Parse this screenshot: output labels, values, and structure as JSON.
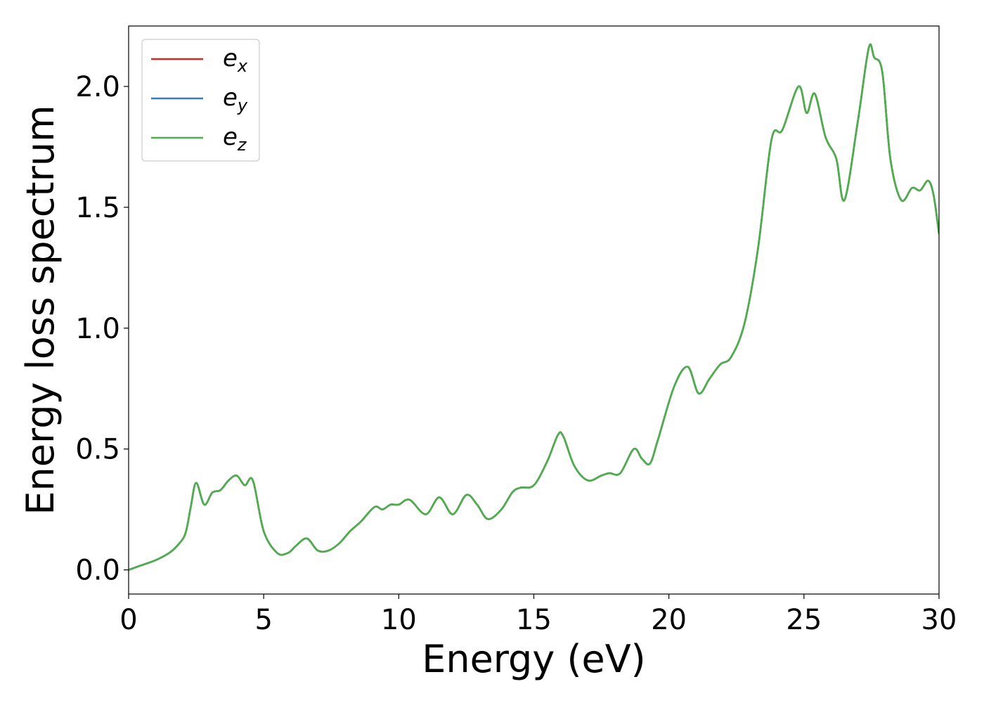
{
  "chart_data": {
    "type": "line",
    "xlabel": "Energy (eV)",
    "ylabel": "Energy loss spectrum",
    "xlim": [
      0,
      30
    ],
    "ylim": [
      -0.1,
      2.25
    ],
    "xticks": [
      0,
      5,
      10,
      15,
      20,
      25,
      30
    ],
    "xtick_labels": [
      "0",
      "5",
      "10",
      "15",
      "20",
      "25",
      "30"
    ],
    "yticks": [
      0.0,
      0.5,
      1.0,
      1.5,
      2.0
    ],
    "ytick_labels": [
      "0.0",
      "0.5",
      "1.0",
      "1.5",
      "2.0"
    ],
    "grid": false,
    "legend_position": "upper-left",
    "series_colors": [
      "#d62728",
      "#377eb8",
      "#4daf4a"
    ],
    "legend": [
      {
        "base": "e",
        "sub": "x"
      },
      {
        "base": "e",
        "sub": "y"
      },
      {
        "base": "e",
        "sub": "z"
      }
    ],
    "x": [
      0.0,
      0.5,
      1.0,
      1.5,
      1.8,
      2.1,
      2.3,
      2.5,
      2.8,
      3.1,
      3.4,
      3.7,
      4.0,
      4.3,
      4.6,
      5.0,
      5.5,
      5.9,
      6.2,
      6.6,
      7.0,
      7.4,
      7.8,
      8.2,
      8.6,
      9.1,
      9.4,
      9.7,
      10.0,
      10.4,
      11.0,
      11.5,
      12.0,
      12.5,
      12.9,
      13.3,
      13.8,
      14.2,
      14.5,
      15.0,
      15.5,
      15.9,
      16.1,
      16.5,
      17.0,
      17.5,
      17.8,
      18.2,
      18.7,
      19.0,
      19.3,
      19.6,
      20.2,
      20.7,
      21.1,
      21.5,
      21.9,
      22.3,
      22.8,
      23.3,
      23.8,
      24.2,
      24.8,
      25.1,
      25.4,
      25.8,
      26.2,
      26.5,
      27.0,
      27.4,
      27.6,
      27.9,
      28.2,
      28.6,
      29.0,
      29.3,
      29.6,
      29.8,
      30.0
    ],
    "series": [
      {
        "values": [
          0.0,
          0.02,
          0.04,
          0.07,
          0.1,
          0.15,
          0.26,
          0.36,
          0.27,
          0.32,
          0.33,
          0.37,
          0.39,
          0.35,
          0.37,
          0.16,
          0.07,
          0.07,
          0.1,
          0.13,
          0.08,
          0.08,
          0.11,
          0.16,
          0.2,
          0.26,
          0.25,
          0.27,
          0.27,
          0.29,
          0.23,
          0.3,
          0.23,
          0.31,
          0.27,
          0.21,
          0.25,
          0.32,
          0.34,
          0.35,
          0.45,
          0.56,
          0.55,
          0.43,
          0.37,
          0.39,
          0.4,
          0.4,
          0.5,
          0.46,
          0.44,
          0.54,
          0.76,
          0.84,
          0.73,
          0.79,
          0.85,
          0.88,
          1.02,
          1.33,
          1.78,
          1.82,
          2.0,
          1.89,
          1.97,
          1.79,
          1.7,
          1.53,
          1.86,
          2.16,
          2.12,
          2.06,
          1.7,
          1.53,
          1.58,
          1.57,
          1.61,
          1.55,
          1.39
        ]
      },
      {
        "values": [
          0.0,
          0.02,
          0.04,
          0.07,
          0.1,
          0.15,
          0.26,
          0.36,
          0.27,
          0.32,
          0.33,
          0.37,
          0.39,
          0.35,
          0.37,
          0.16,
          0.07,
          0.07,
          0.1,
          0.13,
          0.08,
          0.08,
          0.11,
          0.16,
          0.2,
          0.26,
          0.25,
          0.27,
          0.27,
          0.29,
          0.23,
          0.3,
          0.23,
          0.31,
          0.27,
          0.21,
          0.25,
          0.32,
          0.34,
          0.35,
          0.45,
          0.56,
          0.55,
          0.43,
          0.37,
          0.39,
          0.4,
          0.4,
          0.5,
          0.46,
          0.44,
          0.54,
          0.76,
          0.84,
          0.73,
          0.79,
          0.85,
          0.88,
          1.02,
          1.33,
          1.78,
          1.82,
          2.0,
          1.89,
          1.97,
          1.79,
          1.7,
          1.53,
          1.86,
          2.16,
          2.12,
          2.06,
          1.7,
          1.53,
          1.58,
          1.57,
          1.61,
          1.55,
          1.39
        ]
      },
      {
        "values": [
          0.0,
          0.02,
          0.04,
          0.07,
          0.1,
          0.15,
          0.26,
          0.36,
          0.27,
          0.32,
          0.33,
          0.37,
          0.39,
          0.35,
          0.37,
          0.16,
          0.07,
          0.07,
          0.1,
          0.13,
          0.08,
          0.08,
          0.11,
          0.16,
          0.2,
          0.26,
          0.25,
          0.27,
          0.27,
          0.29,
          0.23,
          0.3,
          0.23,
          0.31,
          0.27,
          0.21,
          0.25,
          0.32,
          0.34,
          0.35,
          0.45,
          0.56,
          0.55,
          0.43,
          0.37,
          0.39,
          0.4,
          0.4,
          0.5,
          0.46,
          0.44,
          0.54,
          0.76,
          0.84,
          0.73,
          0.79,
          0.85,
          0.88,
          1.02,
          1.33,
          1.78,
          1.82,
          2.0,
          1.89,
          1.97,
          1.79,
          1.7,
          1.53,
          1.86,
          2.16,
          2.12,
          2.06,
          1.7,
          1.53,
          1.58,
          1.57,
          1.61,
          1.55,
          1.39
        ]
      }
    ]
  }
}
